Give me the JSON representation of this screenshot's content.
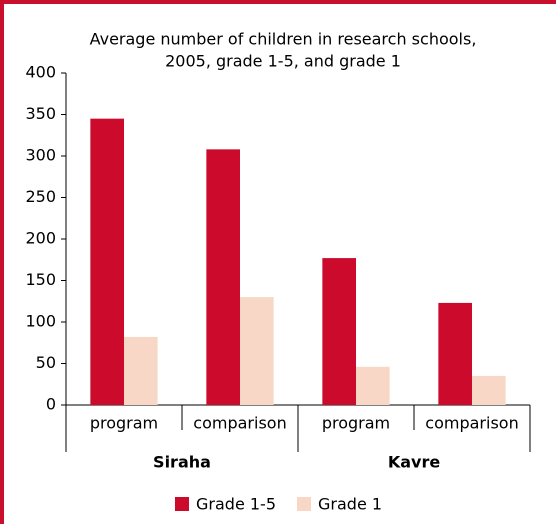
{
  "chart_data": {
    "type": "bar",
    "title": [
      "Average number of children in research schools,",
      "2005, grade 1-5, and grade 1"
    ],
    "categories": [
      "program",
      "comparison",
      "program",
      "comparison"
    ],
    "groups": [
      "Siraha",
      "Kavre"
    ],
    "series": [
      {
        "name": "Grade 1-5",
        "color": "#cc0a2b",
        "values": [
          345,
          308,
          177,
          123
        ]
      },
      {
        "name": "Grade 1",
        "color": "#f8d7c6",
        "values": [
          82,
          130,
          46,
          35
        ]
      }
    ],
    "ylim": [
      0,
      400
    ],
    "yticks": [
      0,
      50,
      100,
      150,
      200,
      250,
      300,
      350,
      400
    ],
    "grid": false
  }
}
